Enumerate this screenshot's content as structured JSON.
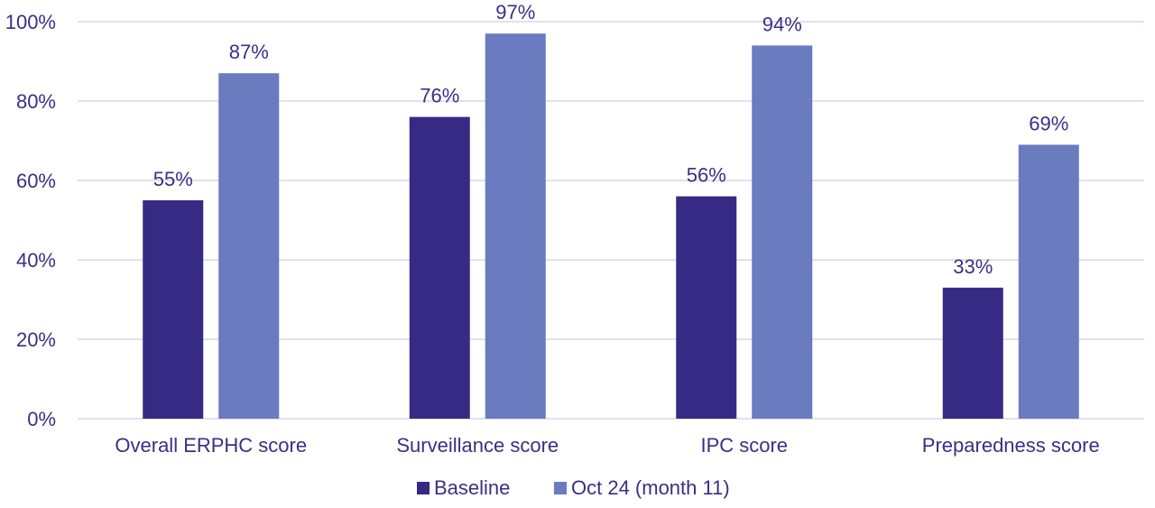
{
  "chart_data": {
    "type": "bar",
    "categories": [
      "Overall ERPHC score",
      "Surveillance score",
      "IPC score",
      "Preparedness score"
    ],
    "series": [
      {
        "name": "Baseline",
        "color": "#372a84",
        "values": [
          55,
          76,
          56,
          33
        ],
        "labels": [
          "55%",
          "76%",
          "56%",
          "33%"
        ]
      },
      {
        "name": "Oct 24 (month 11)",
        "color": "#6a7bbf",
        "values": [
          87,
          97,
          94,
          69
        ],
        "labels": [
          "87%",
          "97%",
          "94%",
          "69%"
        ]
      }
    ],
    "ylim": [
      0,
      100
    ],
    "yticks": [
      0,
      20,
      40,
      60,
      80,
      100
    ],
    "ytick_labels": [
      "0%",
      "20%",
      "40%",
      "60%",
      "80%",
      "100%"
    ],
    "grid": true,
    "legend_position": "bottom",
    "text_color": "#3a2f85",
    "grid_color": "#d9d6ea"
  }
}
